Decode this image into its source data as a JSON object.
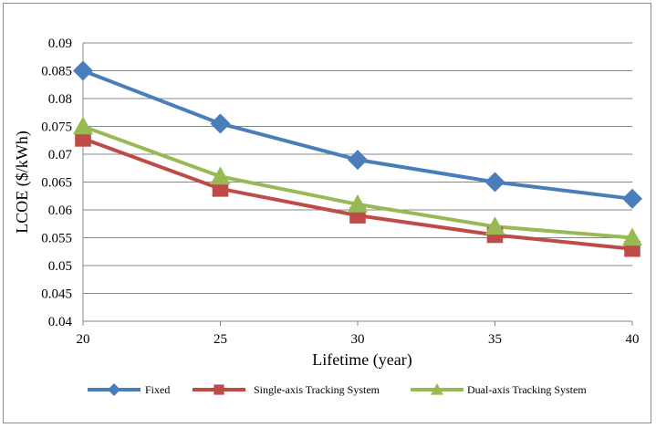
{
  "chart_data": {
    "type": "line",
    "xlabel": "Lifetime (year)",
    "ylabel": "LCOE ($/kWh)",
    "x": [
      20,
      25,
      30,
      35,
      40
    ],
    "xlim": [
      20,
      40
    ],
    "ylim": [
      0.04,
      0.09
    ],
    "x_ticks": [
      "20",
      "25",
      "30",
      "35",
      "40"
    ],
    "y_ticks": [
      "0.04",
      "0.045",
      "0.05",
      "0.055",
      "0.06",
      "0.065",
      "0.07",
      "0.075",
      "0.08",
      "0.085",
      "0.09"
    ],
    "grid": "horizontal",
    "legend_position": "bottom",
    "series": [
      {
        "name": "Fixed",
        "color": "#4a7ebb",
        "marker": "diamond",
        "values": [
          0.085,
          0.0755,
          0.069,
          0.065,
          0.062
        ]
      },
      {
        "name": "Single-axis Tracking System",
        "color": "#be4b48",
        "marker": "square",
        "values": [
          0.0728,
          0.0638,
          0.059,
          0.0555,
          0.053
        ]
      },
      {
        "name": "Dual-axis Tracking System",
        "color": "#98b954",
        "marker": "triangle",
        "values": [
          0.075,
          0.066,
          0.061,
          0.057,
          0.055
        ]
      }
    ]
  }
}
